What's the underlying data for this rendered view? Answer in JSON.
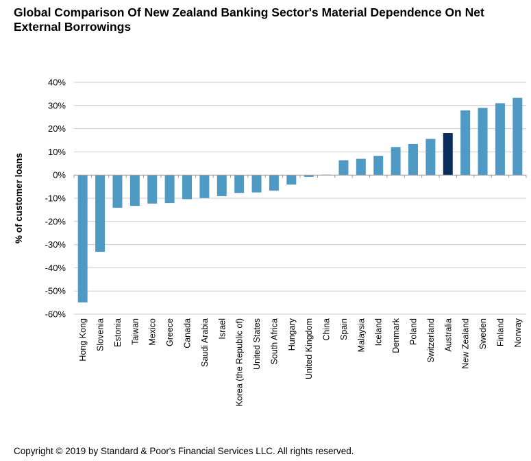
{
  "title": "Global Comparison Of New Zealand Banking Sector's Material Dependence On Net External Borrowings",
  "copyright": "Copyright © 2019 by Standard & Poor's Financial Services LLC. All rights reserved.",
  "chart_data": {
    "type": "bar",
    "title": "Global Comparison Of New Zealand Banking Sector's Material Dependence On Net External Borrowings",
    "xlabel": "",
    "ylabel": "% of customer loans",
    "ylim": [
      -60,
      40
    ],
    "yticks": [
      40,
      30,
      20,
      10,
      0,
      -10,
      -20,
      -30,
      -40,
      -50,
      -60
    ],
    "ytick_labels": [
      "40%",
      "30%",
      "20%",
      "10%",
      "0%",
      "-10%",
      "-20%",
      "-30%",
      "-40%",
      "-50%",
      "-60%"
    ],
    "grid": true,
    "categories": [
      "Hong Kong",
      "Slovenia",
      "Estonia",
      "Taiwan",
      "Mexico",
      "Greece",
      "Canada",
      "Saudi Arabia",
      "Israel",
      "Korea (the Republic of)",
      "United States",
      "South Africa",
      "Hungary",
      "United Kingdom",
      "China",
      "Spain",
      "Malaysia",
      "Iceland",
      "Denmark",
      "Poland",
      "Switzerland",
      "Australia",
      "New Zealand",
      "Sweden",
      "Finland",
      "Norway"
    ],
    "values": [
      -54.9,
      -33.1,
      -14.1,
      -13.3,
      -12.3,
      -12.1,
      -10.4,
      -9.9,
      -9.1,
      -7.7,
      -7.5,
      -6.7,
      -4.1,
      -0.8,
      0.2,
      6.4,
      7.0,
      8.3,
      12.1,
      13.4,
      15.6,
      18.1,
      27.9,
      29.0,
      31.0,
      33.3
    ],
    "highlight": "Australia",
    "colors": {
      "bar": "#4f9ac4",
      "highlight": "#0b2d5b",
      "grid": "#c8c8c8"
    }
  }
}
